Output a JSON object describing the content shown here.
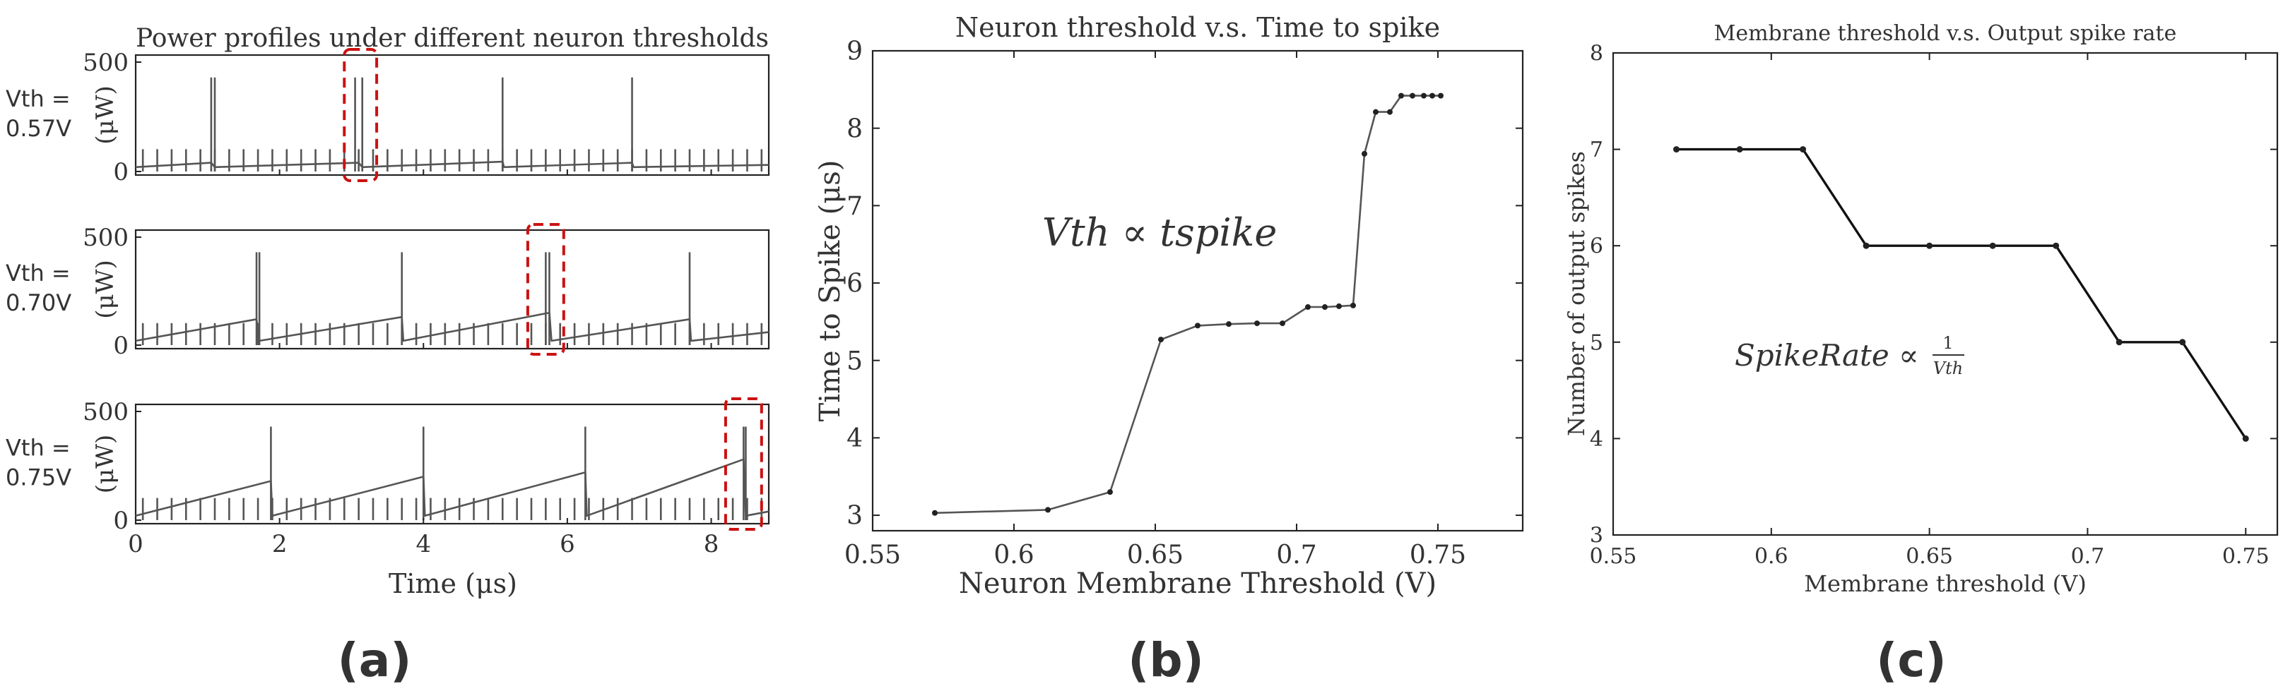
{
  "panels": [
    {
      "id": "a",
      "caption": "(a)",
      "chart_data": {
        "type": "line",
        "title": "Power profiles under different neuron thresholds",
        "xlabel": "Time (μs)",
        "xlim": [
          0,
          8.8
        ],
        "x_ticks": [
          "0",
          "2",
          "4",
          "6",
          "8"
        ],
        "y_unit_label": "(μW)",
        "ylim": [
          0,
          500
        ],
        "y_ticks": [
          "0",
          "500"
        ],
        "baseline_power_uW": 60,
        "input_pulse_period_us": 0.2,
        "series": [
          {
            "name": "Vth = 0.57V",
            "label_line1": "Vth =",
            "label_line2": "0.57V",
            "output_spike_times_us": [
              1.05,
              1.1,
              3.05,
              3.15,
              5.1,
              6.9
            ],
            "membrane_ramp_uW": [
              [
                0,
                20
              ],
              [
                1.05,
                40
              ],
              [
                1.1,
                20
              ],
              [
                3.1,
                40
              ],
              [
                3.15,
                20
              ],
              [
                5.1,
                45
              ],
              [
                5.12,
                20
              ],
              [
                6.9,
                40
              ],
              [
                6.92,
                20
              ],
              [
                8.8,
                30
              ]
            ],
            "highlight_us": [
              2.9,
              3.35
            ]
          },
          {
            "name": "Vth = 0.70V",
            "label_line1": "Vth =",
            "label_line2": "0.70V",
            "output_spike_times_us": [
              1.68,
              1.72,
              3.7,
              5.7,
              5.75,
              7.7
            ],
            "membrane_ramp_uW": [
              [
                0,
                20
              ],
              [
                1.68,
                120
              ],
              [
                1.72,
                20
              ],
              [
                3.7,
                130
              ],
              [
                3.72,
                20
              ],
              [
                5.75,
                150
              ],
              [
                5.78,
                20
              ],
              [
                7.7,
                120
              ],
              [
                7.72,
                20
              ],
              [
                8.8,
                60
              ]
            ],
            "highlight_us": [
              5.45,
              5.95
            ]
          },
          {
            "name": "Vth = 0.75V",
            "label_line1": "Vth =",
            "label_line2": "0.75V",
            "output_spike_times_us": [
              1.88,
              4.0,
              6.25,
              8.45,
              8.48
            ],
            "membrane_ramp_uW": [
              [
                0,
                20
              ],
              [
                1.88,
                180
              ],
              [
                1.9,
                20
              ],
              [
                4.0,
                200
              ],
              [
                4.02,
                20
              ],
              [
                6.25,
                220
              ],
              [
                6.27,
                20
              ],
              [
                8.45,
                280
              ],
              [
                8.48,
                20
              ],
              [
                8.8,
                40
              ]
            ],
            "highlight_us": [
              8.2,
              8.7
            ]
          }
        ]
      }
    },
    {
      "id": "b",
      "caption": "(b)",
      "chart_data": {
        "type": "line",
        "title": "Neuron threshold v.s. Time to spike",
        "xlabel": "Neuron Membrane Threshold (V)",
        "ylabel": "Time to Spike (μs)",
        "xlim": [
          0.55,
          0.78
        ],
        "ylim": [
          2.8,
          9
        ],
        "x_ticks": [
          0.55,
          0.6,
          0.65,
          0.7,
          0.75
        ],
        "x_tick_labels": [
          "0.55",
          "0.6",
          "0.65",
          "0.7",
          "0.75"
        ],
        "y_ticks": [
          3,
          4,
          5,
          6,
          7,
          8,
          9
        ],
        "y_tick_labels": [
          "3",
          "4",
          "5",
          "6",
          "7",
          "8",
          "9"
        ],
        "annotation": "Vth ∝ tspike",
        "series": [
          {
            "name": "Time to spike",
            "x": [
              0.572,
              0.612,
              0.634,
              0.652,
              0.665,
              0.676,
              0.686,
              0.695,
              0.704,
              0.71,
              0.715,
              0.72,
              0.724,
              0.728,
              0.733,
              0.737,
              0.741,
              0.745,
              0.748,
              0.751
            ],
            "y": [
              3.03,
              3.07,
              3.3,
              5.27,
              5.45,
              5.47,
              5.48,
              5.48,
              5.69,
              5.69,
              5.7,
              5.71,
              7.67,
              8.21,
              8.21,
              8.42,
              8.42,
              8.42,
              8.42,
              8.42
            ]
          }
        ]
      }
    },
    {
      "id": "c",
      "caption": "(c)",
      "chart_data": {
        "type": "line",
        "title": "Membrane threshold v.s. Output spike rate",
        "xlabel": "Membrane threshold (V)",
        "ylabel": "Number of output spikes",
        "xlim": [
          0.55,
          0.76
        ],
        "ylim": [
          3,
          8
        ],
        "x_ticks": [
          0.55,
          0.6,
          0.65,
          0.7,
          0.75
        ],
        "x_tick_labels": [
          "0.55",
          "0.6",
          "0.65",
          "0.7",
          "0.75"
        ],
        "y_ticks": [
          3,
          4,
          5,
          6,
          7,
          8
        ],
        "y_tick_labels": [
          "3",
          "4",
          "5",
          "6",
          "7",
          "8"
        ],
        "annotation_main": "SpikeRate ∝",
        "annotation_num": "1",
        "annotation_den": "Vth",
        "series": [
          {
            "name": "Output spikes",
            "x": [
              0.57,
              0.59,
              0.61,
              0.63,
              0.65,
              0.67,
              0.69,
              0.71,
              0.73,
              0.75
            ],
            "y": [
              7,
              7,
              7,
              6,
              6,
              6,
              6,
              5,
              5,
              4
            ]
          }
        ]
      }
    }
  ]
}
